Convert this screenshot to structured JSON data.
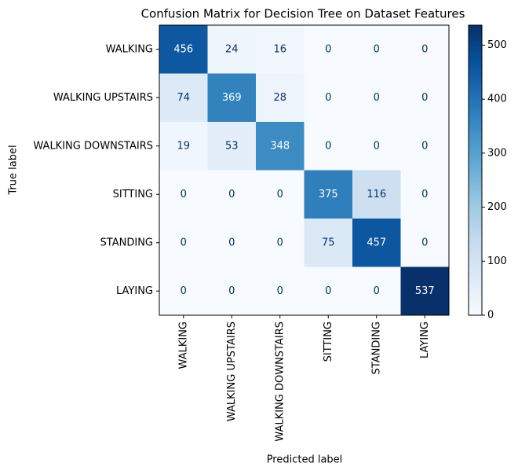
{
  "chart_data": {
    "type": "heatmap",
    "title": "Confusion Matrix for Decision Tree on Dataset Features",
    "x_label": "Predicted label",
    "y_label": "True label",
    "x_categories": [
      "WALKING",
      "WALKING UPSTAIRS",
      "WALKING DOWNSTAIRS",
      "SITTING",
      "STANDING",
      "LAYING"
    ],
    "y_categories": [
      "WALKING",
      "WALKING UPSTAIRS",
      "WALKING DOWNSTAIRS",
      "SITTING",
      "STANDING",
      "LAYING"
    ],
    "values": [
      [
        456,
        24,
        16,
        0,
        0,
        0
      ],
      [
        74,
        369,
        28,
        0,
        0,
        0
      ],
      [
        19,
        53,
        348,
        0,
        0,
        0
      ],
      [
        0,
        0,
        0,
        375,
        116,
        0
      ],
      [
        0,
        0,
        0,
        75,
        457,
        0
      ],
      [
        0,
        0,
        0,
        0,
        0,
        537
      ]
    ],
    "colormap": "Blues",
    "clim": [
      0,
      537
    ],
    "cticks": [
      0,
      100,
      200,
      300,
      400,
      500
    ]
  }
}
